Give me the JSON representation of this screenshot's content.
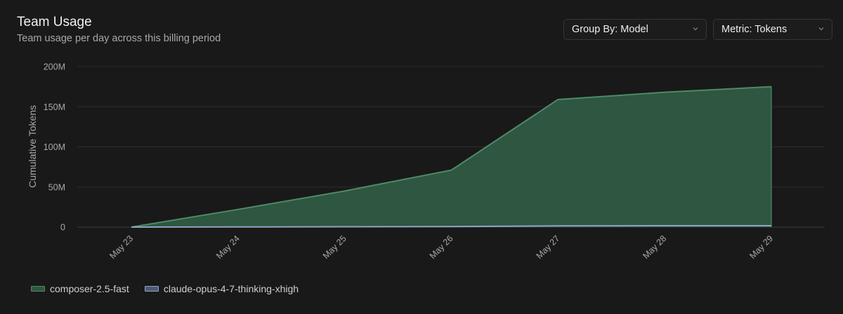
{
  "header": {
    "title": "Team Usage",
    "subtitle": "Team usage per day across this billing period"
  },
  "controls": {
    "group_by": "Group By: Model",
    "metric": "Metric: Tokens"
  },
  "colors": {
    "composer_fill": "#2e5640",
    "composer_line": "#4e8a66",
    "claude_line": "#8ea3c9",
    "grid": "#2c2c2c",
    "axis_text": "#a9a9a9"
  },
  "chart_data": {
    "type": "area",
    "title": "",
    "xlabel": "",
    "ylabel": "Cumulative Tokens",
    "categories": [
      "May 23",
      "May 24",
      "May 25",
      "May 26",
      "May 27",
      "May 28",
      "May 29"
    ],
    "yticks": [
      "0",
      "50M",
      "100M",
      "150M",
      "200M"
    ],
    "ylim": [
      0,
      200000000
    ],
    "grid": true,
    "legend_position": "bottom-left",
    "series": [
      {
        "name": "composer-2.5-fast",
        "values": [
          0,
          22000000,
          45000000,
          71000000,
          159000000,
          168000000,
          175000000
        ]
      },
      {
        "name": "claude-opus-4-7-thinking-xhigh",
        "values": [
          0,
          200000,
          400000,
          700000,
          1500000,
          1700000,
          1800000
        ]
      }
    ]
  }
}
